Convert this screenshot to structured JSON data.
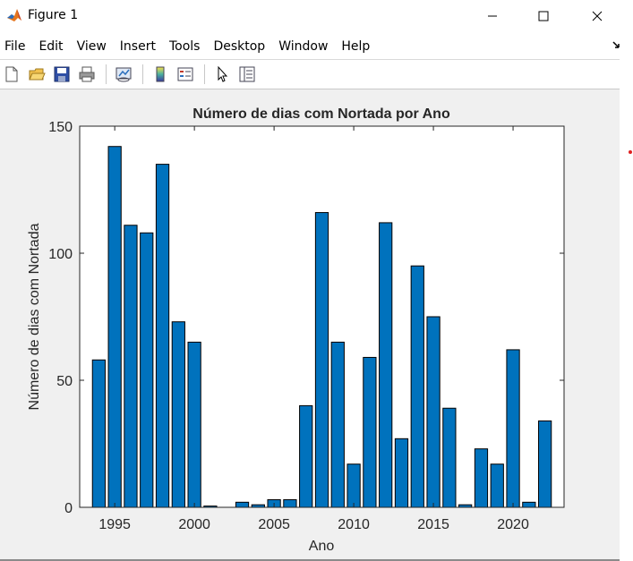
{
  "window": {
    "title": "Figure 1"
  },
  "menu": [
    "File",
    "Edit",
    "View",
    "Insert",
    "Tools",
    "Desktop",
    "Window",
    "Help"
  ],
  "toolbar": {
    "icons": [
      "new-figure-icon",
      "open-file-icon",
      "save-icon",
      "print-icon",
      "link-plot-icon",
      "colorbar-icon",
      "legend-icon",
      "pointer-icon",
      "property-inspector-icon"
    ]
  },
  "colors": {
    "bar": "#0072BD",
    "axes_bg": "#ffffff",
    "figure_bg": "#f0f0f0"
  },
  "chart_data": {
    "type": "bar",
    "title": "Número de dias com Nortada por Ano",
    "xlabel": "Ano",
    "ylabel": "Número de dias com Nortada",
    "x": [
      1994,
      1995,
      1996,
      1997,
      1998,
      1999,
      2000,
      2001,
      2002,
      2003,
      2004,
      2005,
      2006,
      2007,
      2008,
      2009,
      2010,
      2011,
      2012,
      2013,
      2014,
      2015,
      2016,
      2017,
      2018,
      2019,
      2020,
      2021,
      2022
    ],
    "values": [
      58,
      142,
      111,
      108,
      135,
      73,
      65,
      0.5,
      0,
      2,
      1,
      3,
      3,
      40,
      116,
      65,
      17,
      59,
      112,
      27,
      95,
      75,
      39,
      1,
      23,
      17,
      62,
      2,
      34
    ],
    "xlim": [
      1992.8,
      2023.2
    ],
    "ylim": [
      0,
      150
    ],
    "xticks": [
      "1995",
      "2000",
      "2005",
      "2010",
      "2015",
      "2020"
    ],
    "yticks": [
      "0",
      "50",
      "100",
      "150"
    ],
    "grid": false
  }
}
